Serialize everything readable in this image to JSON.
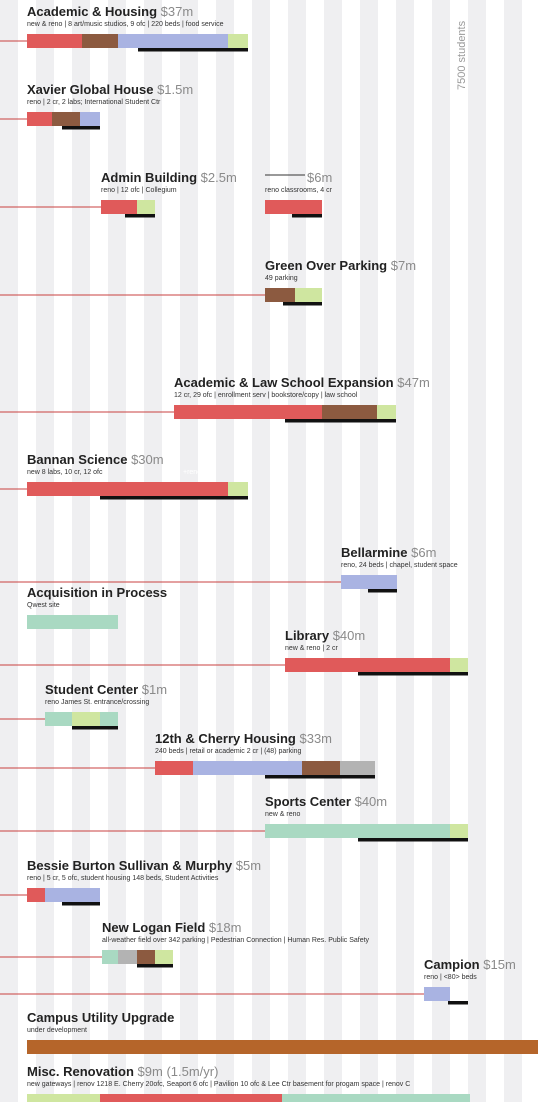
{
  "students_label": "7500 students",
  "projects": [
    {
      "name": "Academic & Housing",
      "cost": "$37m",
      "detail": "new & reno | 8 art/music studios, 9 ofc | 220 beds | food service"
    },
    {
      "name": "Xavier Global House",
      "cost": "$1.5m",
      "detail": "reno | 2 cr, 2 labs; International Student Ctr"
    },
    {
      "name": "Admin Building",
      "cost": "$2.5m",
      "detail": "reno | 12 ofc | Collegium",
      "cost2": "$6m",
      "detail2": "reno classrooms, 4 cr"
    },
    {
      "name": "Green Over Parking",
      "cost": "$7m",
      "detail": "49 parking"
    },
    {
      "name": "Academic & Law School Expansion",
      "cost": "$47m",
      "detail": "12 cr, 29 ofc | enrollment serv | bookstore/copy | law school"
    },
    {
      "name": "Bannan Science",
      "cost": "$30m",
      "detail": "new 8 labs, 10 cr, 12 ofc",
      "note": "+reno"
    },
    {
      "name": "Bellarmine",
      "cost": "$6m",
      "detail": "reno, 24 beds | chapel, student space"
    },
    {
      "name": "Acquisition in Process",
      "detail": "Qwest site"
    },
    {
      "name": "Library",
      "cost": "$40m",
      "detail": "new & reno | 2 cr"
    },
    {
      "name": "Student Center",
      "cost": "$1m",
      "detail": "reno James St. entrance/crossing"
    },
    {
      "name": "12th & Cherry Housing",
      "cost": "$33m",
      "detail": "240 beds | retail or academic 2 cr | (48) parking"
    },
    {
      "name": "Sports Center",
      "cost": "$40m",
      "detail": "new & reno"
    },
    {
      "name": "Bessie Burton Sullivan & Murphy",
      "cost": "$5m",
      "detail": "reno | 5 cr, 5 ofc, student housing 148 beds, Student Activities"
    },
    {
      "name": "New Logan Field",
      "cost": "$18m",
      "detail": "all-weather field over 342 parking | Pedestrian Connection | Human Res. Public Safety"
    },
    {
      "name": "Campion",
      "cost": "$15m",
      "detail": "reno | <80> beds"
    },
    {
      "name": "Campus Utility Upgrade",
      "detail": "under development"
    },
    {
      "name": "Misc. Renovation",
      "cost": "$9m (1.5m/yr)",
      "detail": "new gateways | renov 1218 E. Cherry 20ofc, Seaport 6 ofc | Pavilion 10 ofc & Lee Ctr basement for progam space | renov C"
    }
  ]
}
